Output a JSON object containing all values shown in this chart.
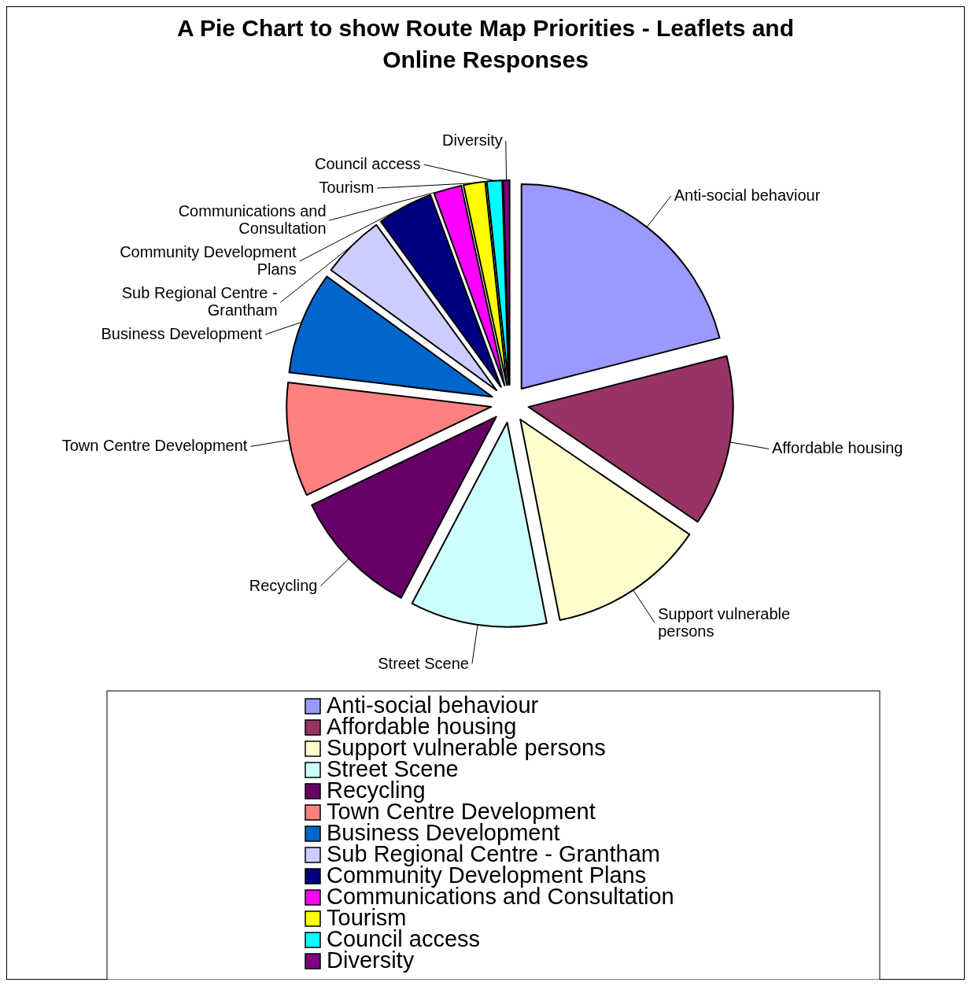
{
  "chart_data": {
    "type": "pie",
    "title": "A Pie Chart to show Route Map Priorities - Leaflets and Online Responses",
    "categories": [
      "Anti-social behaviour",
      "Affordable housing",
      "Support vulnerable persons",
      "Street Scene",
      "Recycling",
      "Town Centre Development",
      "Business Development",
      "Sub Regional Centre - Grantham",
      "Community Development Plans",
      "Communications and Consultation",
      "Tourism",
      "Council access",
      "Diversity"
    ],
    "values": [
      21,
      13.5,
      12.4,
      10.8,
      10.2,
      9,
      8.1,
      5,
      4.4,
      2.2,
      1.7,
      1.2,
      0.5
    ],
    "colors": [
      "#9999ff",
      "#993366",
      "#ffffcc",
      "#ccffff",
      "#660066",
      "#ff8080",
      "#0066cc",
      "#ccccff",
      "#000080",
      "#ff00ff",
      "#ffff00",
      "#00ffff",
      "#800080"
    ],
    "legend": "bottom"
  }
}
